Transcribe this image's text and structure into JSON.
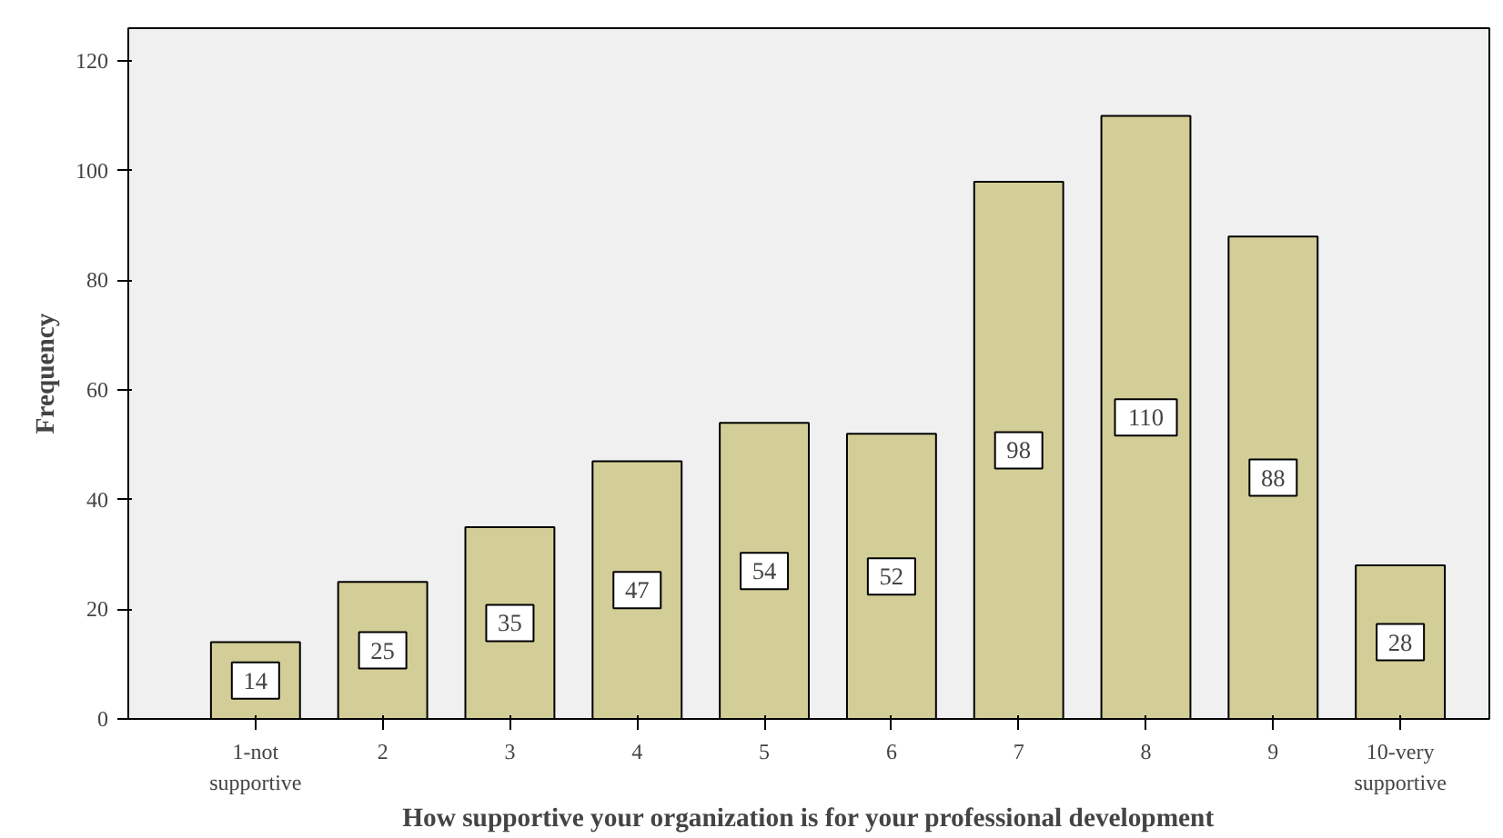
{
  "chart_data": {
    "type": "bar",
    "xlabel": "How supportive your organization is for your professional development",
    "ylabel": "Frequency",
    "categories": [
      "1-not supportive",
      "2",
      "3",
      "4",
      "5",
      "6",
      "7",
      "8",
      "9",
      "10-very supportive"
    ],
    "values": [
      14,
      25,
      35,
      47,
      54,
      52,
      98,
      110,
      88,
      28
    ],
    "color": "#d3ce97",
    "ylim": [
      0,
      126
    ],
    "yticks": [
      0,
      20,
      40,
      60,
      80,
      100,
      120
    ],
    "grid": false,
    "data_labels": true
  }
}
